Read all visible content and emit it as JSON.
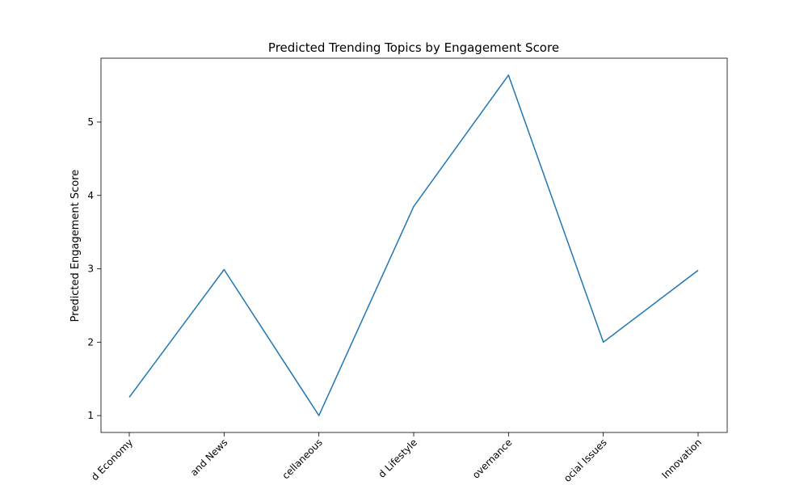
{
  "chart_data": {
    "type": "line",
    "title": "Predicted Trending Topics by Engagement Score",
    "xlabel": "",
    "ylabel": "Predicted Engagement Score",
    "categories": [
      "d Economy",
      "and News",
      "cellaneous",
      "d Lifestyle",
      "overnance",
      "ocial Issues",
      "Innovation"
    ],
    "series": [
      {
        "color": "#1f77b4",
        "values": [
          1.25,
          2.99,
          1.0,
          3.85,
          5.64,
          2.0,
          2.98
        ]
      }
    ],
    "yticks": [
      1,
      2,
      3,
      4,
      5
    ],
    "ylim": [
      0.77,
      5.87
    ],
    "grid": false,
    "legend": "none"
  }
}
